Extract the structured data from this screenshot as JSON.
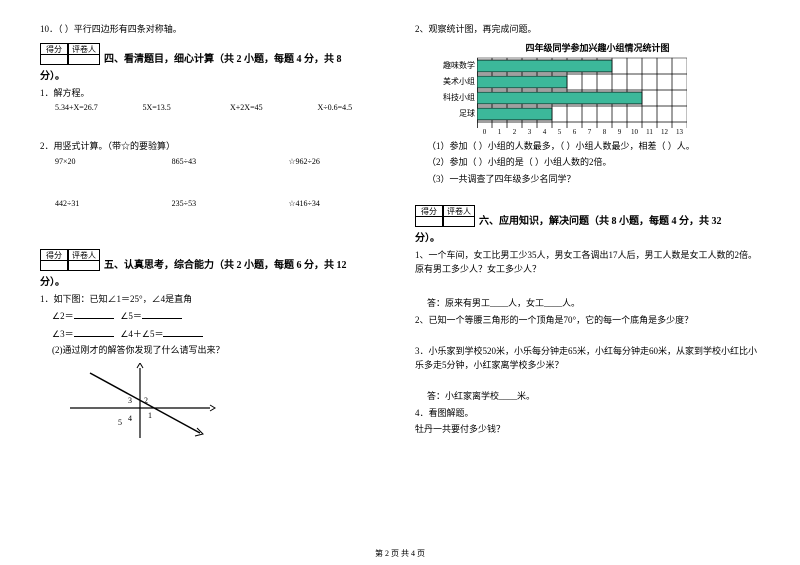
{
  "left": {
    "q10": "10．（    ）平行四边形有四条对称轴。",
    "score_label_1": "得分",
    "score_label_2": "评卷人",
    "sec4_title": "四、看清题目，细心计算（共 2 小题，每题 4 分，共 8",
    "fen_end": "分）。",
    "q4_1": "1．解方程。",
    "eq1": [
      "5.34+X=26.7",
      "5X=13.5",
      "X+2X=45",
      "X÷0.6=4.5"
    ],
    "q4_2": "2．用竖式计算。（带☆的要验算）",
    "eq2": [
      "97×20",
      "865÷43",
      "☆962÷26"
    ],
    "eq3": [
      "442÷31",
      "235÷53",
      "☆416÷34"
    ],
    "sec5_title": "五、认真思考，综合能力（共 2 小题，每题 6 分，共 12",
    "q5_1": "1．如下图：已知∠1＝25°，∠4是直角",
    "q5_1a": "∠2＝",
    "q5_1b": "∠3＝",
    "q5_1c": "∠4＋∠5＝",
    "q5_1d": "∠5＝",
    "q5_1e": "(2)通过刚才的解答你发现了什么请写出来？"
  },
  "right": {
    "q2": "2、观察统计图，再完成问题。",
    "chart_title": "四年级同学参加兴趣小组情况统计图",
    "chart": {
      "categories": [
        "趣味数学",
        "美术小组",
        "科技小组",
        "足球"
      ],
      "values": [
        9,
        6,
        11,
        5
      ],
      "xmax": 13,
      "bar_color": "#3cb89a",
      "grid_color": "#000000",
      "background_color": "#ffffff"
    },
    "xticks": [
      "0",
      "1",
      "2",
      "3",
      "4",
      "5",
      "6",
      "7",
      "8",
      "9",
      "10",
      "11",
      "12",
      "13"
    ],
    "q2_1": "（1）参加（        ）小组的人数最多，（        ）小组人数最少，相差（    ）人。",
    "q2_2": "（2）参加（        ）小组的是（        ）小组人数的2倍。",
    "q2_3": "（3）一共调查了四年级多少名同学？",
    "sec6_title": "六、应用知识，解决问题（共 8 小题，每题 4 分，共 32",
    "q6_1": "1、一个车间，女工比男工少35人，男女工各调出17人后，男工人数是女工人数的2倍。原有男工多少人？女工多少人？",
    "q6_1a": "答：原来有男工____人，女工____人。",
    "q6_2": "2、已知一个等腰三角形的一个顶角是70°，它的每一个底角是多少度？",
    "q6_3": "3．小乐家到学校520米，小乐每分钟走65米，小红每分钟走60米，从家到学校小红比小乐多走5分钟，小红家离学校多少米？",
    "q6_3a": "答：小红家离学校____米。",
    "q6_4": "4．看图解题。",
    "q6_4a": "牡丹一共要付多少钱？"
  },
  "footer": "第 2 页 共 4 页"
}
